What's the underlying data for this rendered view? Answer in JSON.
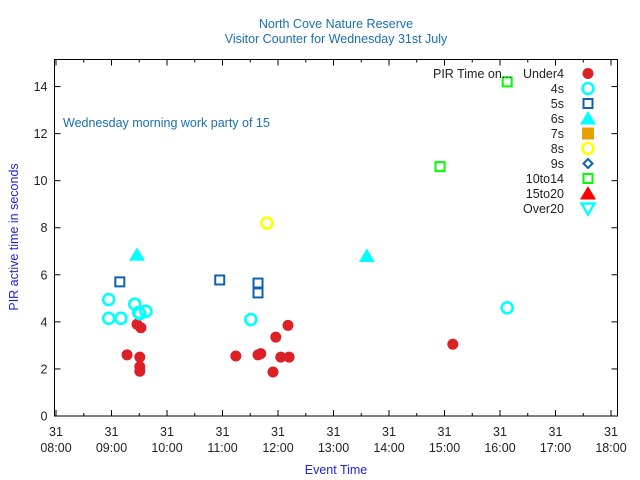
{
  "chart_data": {
    "type": "scatter",
    "title": "North Cove Nature Reserve",
    "subtitle": "Visitor Counter for Wednesday 31st July",
    "xlabel": "Event Time",
    "ylabel": "PIR active time in seconds",
    "annotation": "Wednesday morning work party of 15",
    "legend_title": "PIR Time on...",
    "legend_position": "top-right",
    "xlim": [
      8.0,
      18.1
    ],
    "ylim": [
      0,
      15.15
    ],
    "x_ticks": [
      {
        "value": 8,
        "day": "31",
        "time": "08:00"
      },
      {
        "value": 9,
        "day": "31",
        "time": "09:00"
      },
      {
        "value": 10,
        "day": "31",
        "time": "10:00"
      },
      {
        "value": 11,
        "day": "31",
        "time": "11:00"
      },
      {
        "value": 12,
        "day": "31",
        "time": "12:00"
      },
      {
        "value": 13,
        "day": "31",
        "time": "13:00"
      },
      {
        "value": 14,
        "day": "31",
        "time": "14:00"
      },
      {
        "value": 15,
        "day": "31",
        "time": "15:00"
      },
      {
        "value": 16,
        "day": "31",
        "time": "16:00"
      },
      {
        "value": 17,
        "day": "31",
        "time": "17:00"
      },
      {
        "value": 18,
        "day": "31",
        "time": "18:00"
      }
    ],
    "y_ticks": [
      "0",
      "2",
      "4",
      "6",
      "8",
      "10",
      "12",
      "14"
    ],
    "series": [
      {
        "name": "Under4",
        "marker": "filled-circle",
        "color": "#dd1f26",
        "points": [
          [
            9.28,
            2.6
          ],
          [
            9.51,
            2.5
          ],
          [
            9.51,
            2.1
          ],
          [
            9.51,
            1.9
          ],
          [
            9.46,
            3.9
          ],
          [
            9.53,
            3.75
          ],
          [
            11.24,
            2.55
          ],
          [
            11.64,
            2.6
          ],
          [
            11.69,
            2.65
          ],
          [
            11.96,
            3.35
          ],
          [
            12.05,
            2.5
          ],
          [
            12.18,
            3.85
          ],
          [
            12.2,
            2.5
          ],
          [
            11.91,
            1.87
          ],
          [
            15.15,
            3.05
          ]
        ]
      },
      {
        "name": "4s",
        "marker": "open-circle",
        "color": "#00ffff",
        "points": [
          [
            8.95,
            4.95
          ],
          [
            8.95,
            4.15
          ],
          [
            9.17,
            4.15
          ],
          [
            9.42,
            4.75
          ],
          [
            9.51,
            4.35
          ],
          [
            9.49,
            4.4
          ],
          [
            9.62,
            4.45
          ],
          [
            11.51,
            4.1
          ],
          [
            16.13,
            4.6
          ]
        ]
      },
      {
        "name": "5s",
        "marker": "open-square",
        "color": "#1060b0",
        "points": [
          [
            9.15,
            5.7
          ],
          [
            10.95,
            5.78
          ],
          [
            11.64,
            5.65
          ],
          [
            11.64,
            5.23
          ]
        ]
      },
      {
        "name": "6s",
        "marker": "filled-triangle",
        "color": "#00ffff",
        "points": [
          [
            9.46,
            6.85
          ],
          [
            13.6,
            6.8
          ]
        ]
      },
      {
        "name": "7s",
        "marker": "filled-square",
        "color": "#e69f00",
        "points": []
      },
      {
        "name": "8s",
        "marker": "open-circle",
        "color": "#ffff00",
        "points": [
          [
            11.8,
            8.2
          ]
        ]
      },
      {
        "name": "9s",
        "marker": "open-diamond",
        "color": "#1060b0",
        "points": []
      },
      {
        "name": "10to14",
        "marker": "open-square",
        "color": "#00ff00",
        "points": [
          [
            14.92,
            10.6
          ],
          [
            16.13,
            14.2
          ]
        ]
      },
      {
        "name": "15to20",
        "marker": "filled-triangle",
        "color": "#ff0000",
        "points": []
      },
      {
        "name": "Over20",
        "marker": "open-triangle-down",
        "color": "#00ffff",
        "points": []
      }
    ]
  }
}
